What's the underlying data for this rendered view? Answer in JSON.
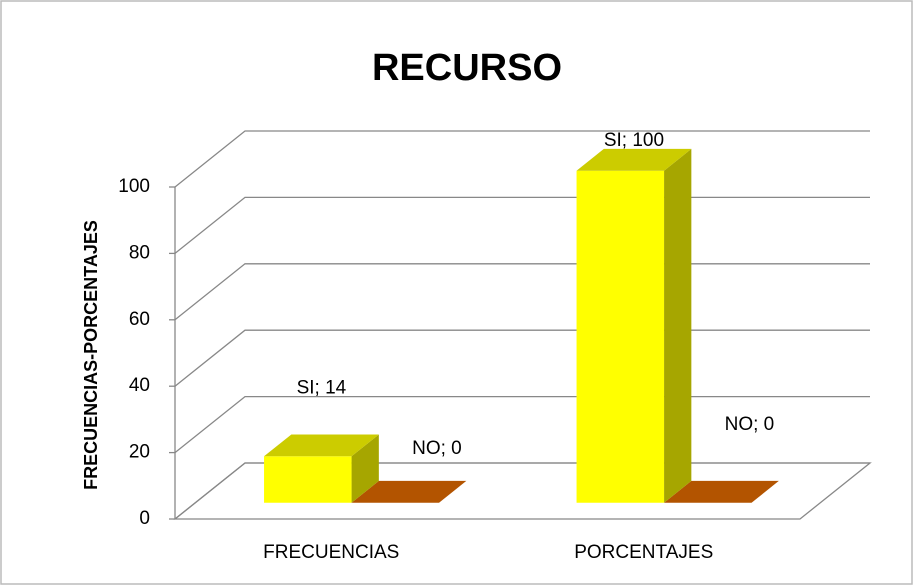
{
  "chart_data": {
    "type": "bar3d",
    "title": "RECURSO",
    "y_label": "FRECUENCIAS-PORCENTAJES",
    "categories": [
      "FRECUENCIAS",
      "PORCENTAJES"
    ],
    "series": [
      {
        "name": "SI",
        "color": "#ffff00",
        "values": [
          14,
          100
        ],
        "value_labels": [
          "SI; 14",
          "SI; 100"
        ]
      },
      {
        "name": "NO",
        "color": "#b35400",
        "values": [
          0,
          0
        ],
        "value_labels": [
          "NO; 0",
          "NO; 0"
        ]
      }
    ],
    "ylim": [
      0,
      100
    ],
    "yticks": [
      0,
      20,
      40,
      60,
      80,
      100
    ],
    "grid": true
  }
}
